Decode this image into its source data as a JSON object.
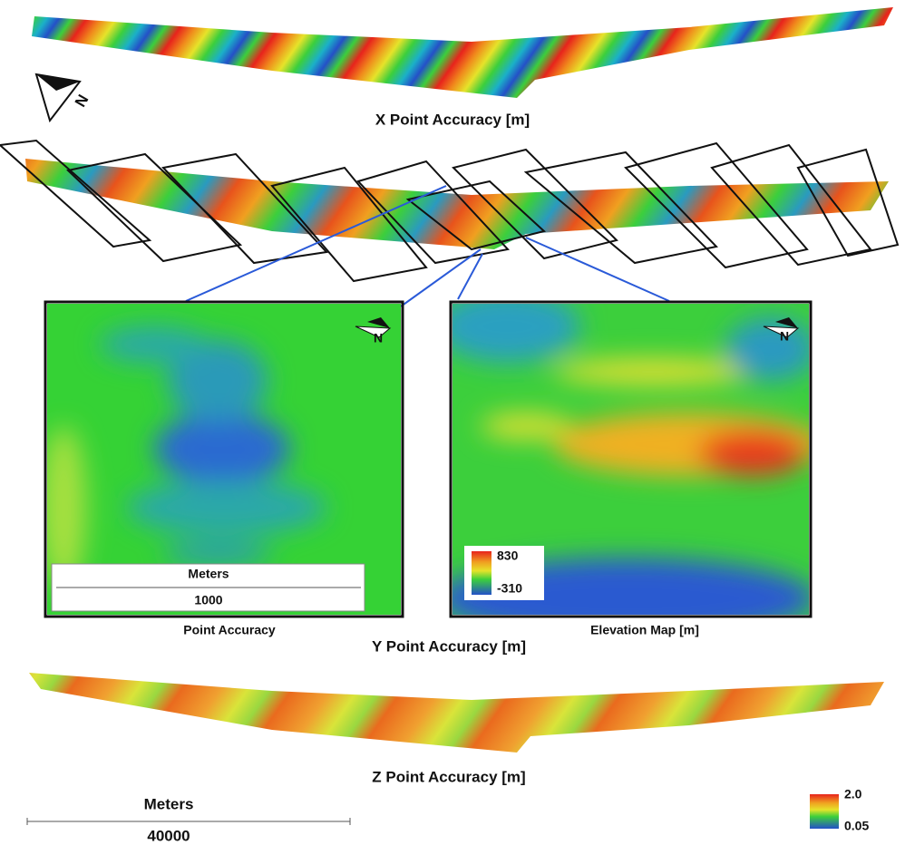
{
  "figure": {
    "x_panel": {
      "title": "X Point Accuracy [m]",
      "north": "N"
    },
    "y_panel": {
      "title": "Y Point Accuracy [m]"
    },
    "inset_accuracy": {
      "title": "Point Accuracy",
      "north": "N",
      "scale_unit": "Meters",
      "scale_value": "1000"
    },
    "inset_elevation": {
      "title": "Elevation Map [m]",
      "north": "N",
      "legend_max": "830",
      "legend_min": "-310"
    },
    "z_panel": {
      "title": "Z Point Accuracy [m]"
    },
    "scale_bar": {
      "unit": "Meters",
      "value": "40000"
    },
    "legend": {
      "max": "2.0",
      "min": "0.05"
    }
  }
}
